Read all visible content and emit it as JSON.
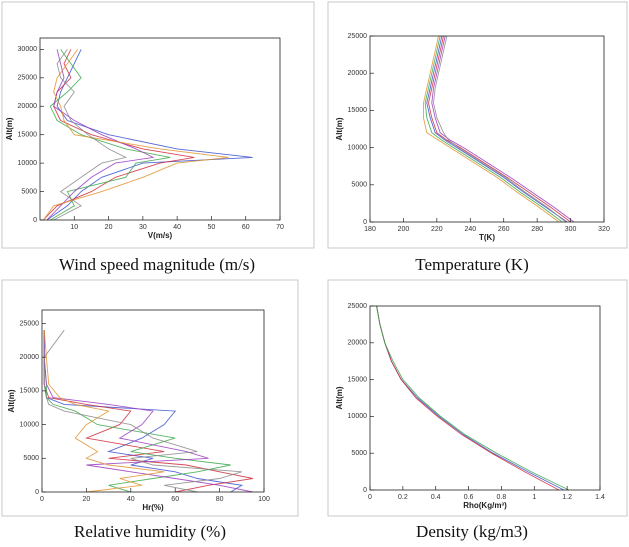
{
  "chart_data": [
    {
      "type": "line",
      "caption": "Wind speed magnitude (m/s)",
      "xlabel": "V(m/s)",
      "ylabel": "Alt(m)",
      "xlim": [
        0,
        70
      ],
      "xticks": [
        10,
        20,
        30,
        40,
        50,
        60,
        70
      ],
      "ylim": [
        0,
        32000
      ],
      "yticks": [
        0,
        5000,
        10000,
        15000,
        20000,
        25000,
        30000
      ],
      "y": [
        0,
        2500,
        5000,
        7500,
        10000,
        11000,
        12500,
        15000,
        17500,
        20000,
        22500,
        25000,
        27500,
        30000
      ],
      "series": [
        {
          "color": "#3a4fd0",
          "values": [
            2,
            8,
            12,
            18,
            30,
            62,
            40,
            20,
            8,
            5,
            6,
            8,
            10,
            12
          ]
        },
        {
          "color": "#d02a3a",
          "values": [
            1,
            5,
            15,
            22,
            35,
            45,
            30,
            15,
            6,
            4,
            5,
            9,
            7,
            9
          ]
        },
        {
          "color": "#3aa84a",
          "values": [
            3,
            10,
            8,
            25,
            28,
            38,
            25,
            12,
            5,
            3,
            8,
            12,
            9,
            6
          ]
        },
        {
          "color": "#9a3ac0",
          "values": [
            2,
            6,
            10,
            15,
            22,
            33,
            28,
            18,
            10,
            4,
            5,
            7,
            6,
            5
          ]
        },
        {
          "color": "#e0902a",
          "values": [
            1,
            4,
            18,
            30,
            40,
            55,
            35,
            10,
            7,
            6,
            4,
            5,
            8,
            11
          ]
        },
        {
          "color": "#8a8a8a",
          "values": [
            4,
            12,
            6,
            12,
            18,
            25,
            20,
            14,
            9,
            7,
            10,
            6,
            5,
            8
          ]
        }
      ]
    },
    {
      "type": "line",
      "caption": "Temperature (K)",
      "xlabel": "T(K)",
      "ylabel": "Alt(m)",
      "xlim": [
        180,
        320
      ],
      "xticks": [
        180,
        200,
        220,
        240,
        260,
        280,
        300,
        320
      ],
      "ylim": [
        0,
        25000
      ],
      "yticks": [
        0,
        5000,
        10000,
        15000,
        20000,
        25000
      ],
      "y": [
        0,
        2000,
        4000,
        6000,
        8000,
        10000,
        11000,
        12000,
        14000,
        16000,
        18000,
        20000,
        22000,
        24000,
        25000
      ],
      "series": [
        {
          "color": "#3a4fd0",
          "values": [
            298,
            285,
            272,
            260,
            246,
            232,
            225,
            219,
            216,
            214,
            216,
            218,
            220,
            222,
            223
          ]
        },
        {
          "color": "#d02a3a",
          "values": [
            300,
            288,
            275,
            262,
            248,
            234,
            226,
            220,
            217,
            215,
            217,
            219,
            221,
            223,
            224
          ]
        },
        {
          "color": "#3aa84a",
          "values": [
            295,
            283,
            270,
            258,
            244,
            230,
            223,
            217,
            214,
            213,
            215,
            217,
            219,
            221,
            222
          ]
        },
        {
          "color": "#9a3ac0",
          "values": [
            302,
            290,
            277,
            264,
            250,
            236,
            228,
            222,
            219,
            217,
            218,
            220,
            222,
            224,
            225
          ]
        },
        {
          "color": "#e0902a",
          "values": [
            293,
            281,
            268,
            256,
            242,
            228,
            221,
            214,
            212,
            212,
            214,
            216,
            218,
            220,
            221
          ]
        },
        {
          "color": "#8a8a8a",
          "values": [
            297,
            286,
            273,
            261,
            247,
            233,
            227,
            224,
            220,
            218,
            219,
            221,
            223,
            225,
            226
          ]
        }
      ]
    },
    {
      "type": "line",
      "caption": "Relative humidity (%)",
      "xlabel": "Hr(%)",
      "ylabel": "Alt(m)",
      "xlim": [
        0,
        100
      ],
      "xticks": [
        0,
        20,
        40,
        60,
        80,
        100
      ],
      "ylim": [
        0,
        27000
      ],
      "yticks": [
        0,
        5000,
        10000,
        15000,
        20000,
        25000
      ],
      "y": [
        0,
        1000,
        2000,
        3000,
        4000,
        5000,
        6000,
        8000,
        10000,
        12000,
        13000,
        14000,
        16000,
        20000,
        24000
      ],
      "series": [
        {
          "color": "#3a4fd0",
          "values": [
            85,
            90,
            70,
            60,
            40,
            50,
            30,
            45,
            55,
            60,
            10,
            2,
            1,
            1,
            1
          ]
        },
        {
          "color": "#d02a3a",
          "values": [
            60,
            75,
            95,
            80,
            65,
            30,
            55,
            20,
            35,
            40,
            20,
            3,
            1,
            1,
            1
          ]
        },
        {
          "color": "#3aa84a",
          "values": [
            40,
            30,
            50,
            70,
            85,
            60,
            40,
            60,
            25,
            15,
            5,
            2,
            2,
            1,
            1
          ]
        },
        {
          "color": "#9a3ac0",
          "values": [
            95,
            80,
            60,
            40,
            20,
            75,
            65,
            35,
            45,
            50,
            30,
            5,
            2,
            1,
            1
          ]
        },
        {
          "color": "#e0902a",
          "values": [
            20,
            45,
            35,
            55,
            30,
            20,
            25,
            15,
            20,
            30,
            15,
            8,
            3,
            2,
            1
          ]
        },
        {
          "color": "#8a8a8a",
          "values": [
            70,
            55,
            80,
            90,
            50,
            40,
            70,
            50,
            40,
            10,
            3,
            2,
            1,
            1,
            10
          ]
        }
      ]
    },
    {
      "type": "line",
      "caption": "Density (kg/m3)",
      "xlabel": "Rho(Kg/m³)",
      "ylabel": "Alt(m)",
      "xlim": [
        0,
        1.4
      ],
      "xticks": [
        0,
        0.2,
        0.4,
        0.6,
        0.8,
        1,
        1.2,
        1.4
      ],
      "ylim": [
        0,
        25000
      ],
      "yticks": [
        0,
        5000,
        10000,
        15000,
        20000,
        25000
      ],
      "y": [
        0,
        2500,
        5000,
        7500,
        10000,
        12500,
        15000,
        17500,
        20000,
        22500,
        25000
      ],
      "series": [
        {
          "color": "#3a4fd0",
          "values": [
            1.18,
            0.96,
            0.75,
            0.57,
            0.42,
            0.29,
            0.19,
            0.13,
            0.09,
            0.06,
            0.04
          ]
        },
        {
          "color": "#d02a3a",
          "values": [
            1.15,
            0.94,
            0.74,
            0.56,
            0.41,
            0.28,
            0.19,
            0.13,
            0.09,
            0.06,
            0.04
          ]
        },
        {
          "color": "#3aa84a",
          "values": [
            1.21,
            0.98,
            0.77,
            0.58,
            0.43,
            0.3,
            0.2,
            0.14,
            0.09,
            0.06,
            0.04
          ]
        }
      ]
    }
  ]
}
